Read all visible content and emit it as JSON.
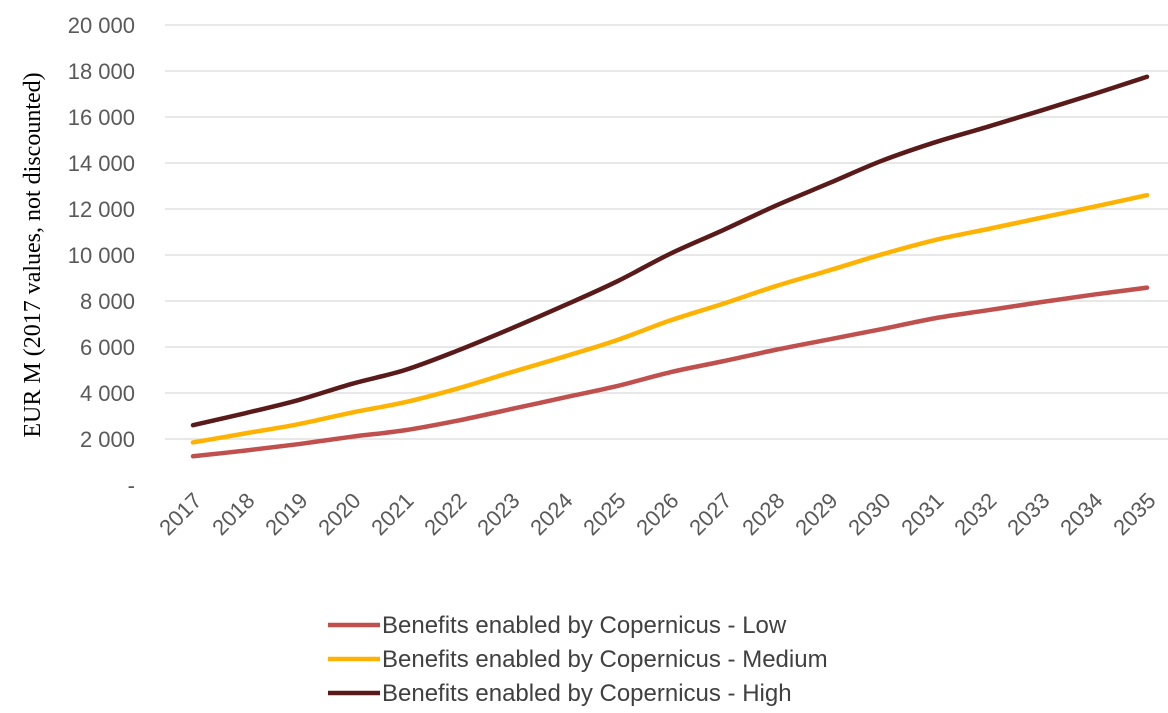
{
  "chart_data": {
    "type": "line",
    "ylabel": "EUR M (2017 values, not discounted)",
    "xlabel": "",
    "ylim": [
      0,
      20000
    ],
    "yticks": [
      {
        "value": 0,
        "label": "-"
      },
      {
        "value": 2000,
        "label": "2 000"
      },
      {
        "value": 4000,
        "label": "4 000"
      },
      {
        "value": 6000,
        "label": "6 000"
      },
      {
        "value": 8000,
        "label": "8 000"
      },
      {
        "value": 10000,
        "label": "10 000"
      },
      {
        "value": 12000,
        "label": "12 000"
      },
      {
        "value": 14000,
        "label": "14 000"
      },
      {
        "value": 16000,
        "label": "16 000"
      },
      {
        "value": 18000,
        "label": "18 000"
      },
      {
        "value": 20000,
        "label": "20 000"
      }
    ],
    "grid": true,
    "legend": "bottom",
    "categories": [
      "2017",
      "2018",
      "2019",
      "2020",
      "2021",
      "2022",
      "2023",
      "2024",
      "2025",
      "2026",
      "2027",
      "2028",
      "2029",
      "2030",
      "2031",
      "2032",
      "2033",
      "2034",
      "2035"
    ],
    "series": [
      {
        "name": "Benefits enabled by Copernicus - Low",
        "color": "#c0504d",
        "values": [
          1250,
          1500,
          1780,
          2100,
          2380,
          2800,
          3300,
          3800,
          4300,
          4900,
          5380,
          5880,
          6330,
          6780,
          7250,
          7600,
          7950,
          8280,
          8580
        ]
      },
      {
        "name": "Benefits enabled by Copernicus - Medium",
        "color": "#ffb300",
        "values": [
          1850,
          2250,
          2650,
          3150,
          3600,
          4200,
          4900,
          5580,
          6300,
          7150,
          7880,
          8650,
          9330,
          10030,
          10650,
          11130,
          11620,
          12100,
          12600
        ]
      },
      {
        "name": "Benefits enabled by Copernicus - High",
        "color": "#5a1a1a",
        "values": [
          2600,
          3130,
          3700,
          4400,
          5000,
          5850,
          6800,
          7800,
          8850,
          10050,
          11080,
          12150,
          13120,
          14100,
          14900,
          15580,
          16280,
          17000,
          17750
        ]
      }
    ]
  }
}
